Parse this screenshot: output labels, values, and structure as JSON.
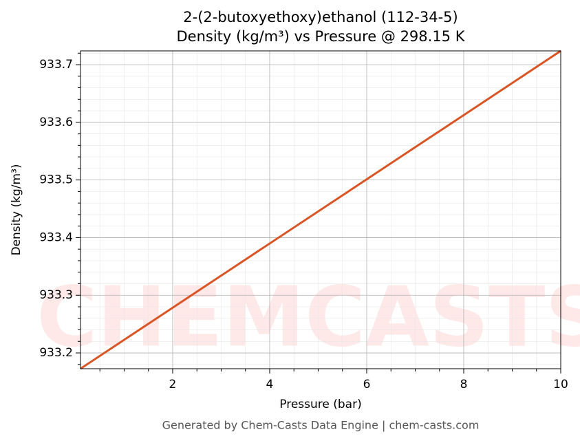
{
  "chart_data": {
    "type": "line",
    "title": "2-(2-butoxyethoxy)ethanol (112-34-5)",
    "subtitle": "Density (kg/m³) vs Pressure @ 298.15 K",
    "xlabel": "Pressure (bar)",
    "ylabel": "Density (kg/m³)",
    "footer": "Generated by Chem-Casts Data Engine | chem-casts.com",
    "watermark": "CHEMCASTS",
    "x": [
      0.1,
      10
    ],
    "series": [
      {
        "name": "Density",
        "color": "#d95525",
        "values": [
          933.1726,
          933.7239
        ]
      }
    ],
    "xlim": [
      0.1,
      10
    ],
    "ylim": [
      933.1726,
      933.7239
    ],
    "xticks": [
      2,
      4,
      6,
      8,
      10
    ],
    "yticks": [
      933.2,
      933.3,
      933.4,
      933.5,
      933.6,
      933.7
    ],
    "xminorticks": [
      0.5,
      1,
      1.5,
      2.5,
      3,
      3.5,
      4.5,
      5,
      5.5,
      6.5,
      7,
      7.5,
      8.5,
      9,
      9.5
    ],
    "yminorticks": [
      933.18,
      933.22,
      933.24,
      933.26,
      933.28,
      933.32,
      933.34,
      933.36,
      933.38,
      933.42,
      933.44,
      933.46,
      933.48,
      933.52,
      933.54,
      933.56,
      933.58,
      933.62,
      933.64,
      933.66,
      933.68,
      933.72
    ],
    "grid": true
  }
}
